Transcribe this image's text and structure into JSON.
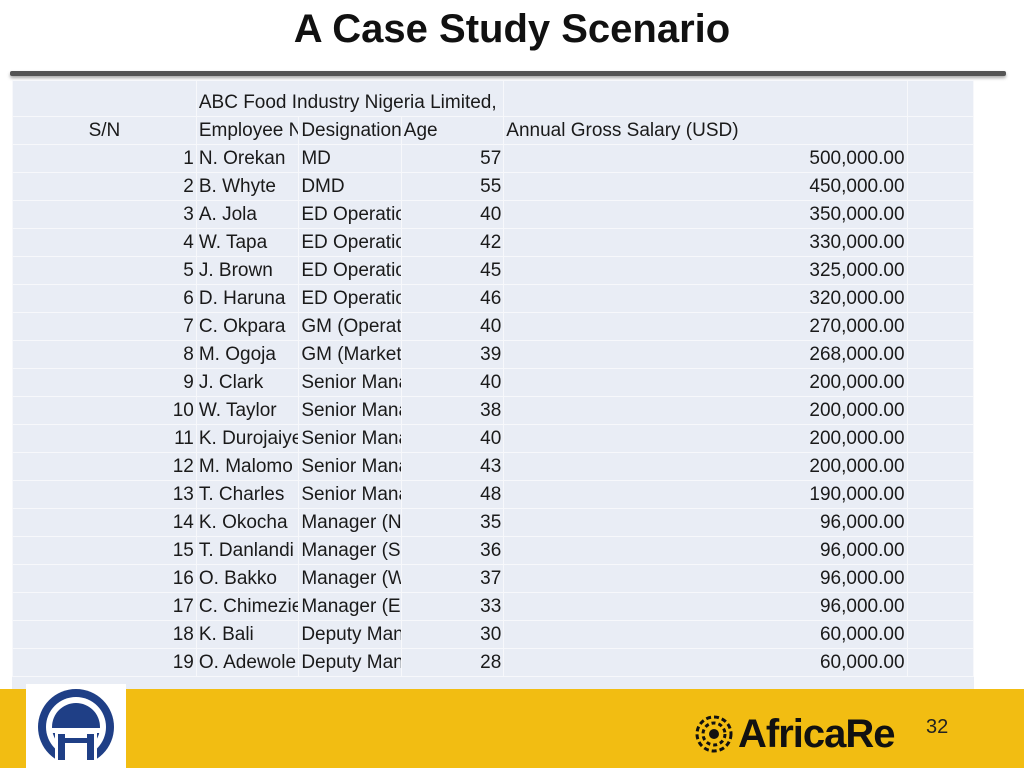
{
  "slide": {
    "title": "A Case Study Scenario",
    "page_number": "32"
  },
  "table": {
    "company": "ABC Food Industry Nigeria Limited, Lagos-Nigeria",
    "headers": {
      "sn": "S/N",
      "name": "Employee Name",
      "designation": "Designation",
      "age": "Age",
      "salary": "Annual Gross Salary (USD)"
    },
    "rows": [
      {
        "sn": "1",
        "name": "N. Orekan",
        "designation": "MD",
        "age": "57",
        "salary": "500,000.00"
      },
      {
        "sn": "2",
        "name": "B. Whyte",
        "designation": "DMD",
        "age": "55",
        "salary": "450,000.00"
      },
      {
        "sn": "3",
        "name": "A. Jola",
        "designation": "ED Operations (North)",
        "age": "40",
        "salary": "350,000.00"
      },
      {
        "sn": "4",
        "name": "W. Tapa",
        "designation": "ED Operations (South",
        "age": "42",
        "salary": "330,000.00"
      },
      {
        "sn": "5",
        "name": "J. Brown",
        "designation": "ED Operations (West)",
        "age": "45",
        "salary": "325,000.00"
      },
      {
        "sn": "6",
        "name": "D. Haruna",
        "designation": "ED Operations (East)",
        "age": "46",
        "salary": "320,000.00"
      },
      {
        "sn": "7",
        "name": "C. Okpara",
        "designation": "GM (Operations)",
        "age": "40",
        "salary": "270,000.00"
      },
      {
        "sn": "8",
        "name": "M. Ogoja",
        "designation": "GM (Marketing & Distr.)",
        "age": "39",
        "salary": "268,000.00"
      },
      {
        "sn": "9",
        "name": "J. Clark",
        "designation": "Senior Manager (North)",
        "age": "40",
        "salary": "200,000.00"
      },
      {
        "sn": "10",
        "name": "W. Taylor",
        "designation": "Senior Manager (South)",
        "age": "38",
        "salary": "200,000.00"
      },
      {
        "sn": "11",
        "name": "K. Durojaiye",
        "designation": "Senior Manager (West)",
        "age": "40",
        "salary": "200,000.00"
      },
      {
        "sn": "12",
        "name": "M. Malomo",
        "designation": "Senior Manager (East)",
        "age": "43",
        "salary": "200,000.00"
      },
      {
        "sn": "13",
        "name": "T. Charles",
        "designation": "Senior Manager (HR)",
        "age": "48",
        "salary": "190,000.00"
      },
      {
        "sn": "14",
        "name": "K. Okocha",
        "designation": "Manager (North)",
        "age": "35",
        "salary": "96,000.00"
      },
      {
        "sn": "15",
        "name": "T. Danlandi",
        "designation": "Manager (South)",
        "age": "36",
        "salary": "96,000.00"
      },
      {
        "sn": "16",
        "name": "O. Bakko",
        "designation": "Manager (West)",
        "age": "37",
        "salary": "96,000.00"
      },
      {
        "sn": "17",
        "name": "C. Chimezie",
        "designation": "Manager (East)",
        "age": "33",
        "salary": "96,000.00"
      },
      {
        "sn": "18",
        "name": "K. Bali",
        "designation": "Deputy Manager",
        "age": "30",
        "salary": "60,000.00"
      },
      {
        "sn": "19",
        "name": "O. Adewole",
        "designation": "Deputy Manager",
        "age": "28",
        "salary": "60,000.00"
      }
    ]
  },
  "branding": {
    "left_logo_icon": "circle-a-logo-icon",
    "right_logo_icon": "africa-re-globe-icon",
    "right_logo_text": "AfricaRe"
  },
  "colors": {
    "footer_band": "#f2bd12",
    "sheet_background": "#e9edf5",
    "logo_blue": "#1f3f86"
  }
}
